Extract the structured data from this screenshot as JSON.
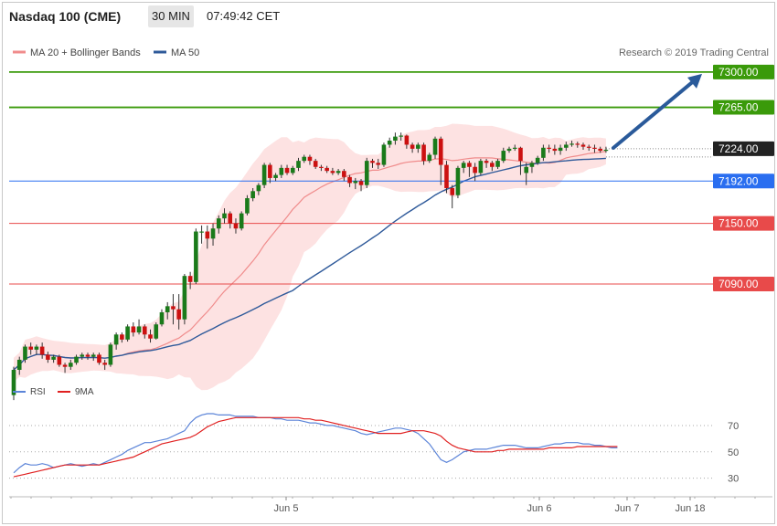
{
  "header": {
    "instrument": "Nasdaq 100 (CME)",
    "timeframe": "30 MIN",
    "time": "07:49:42 CET"
  },
  "legend": {
    "ma20": "MA 20 + Bollinger Bands",
    "ma50": "MA 50",
    "copyright": "Research © 2019 Trading Central",
    "rsi": "RSI",
    "ma9": "9MA"
  },
  "colors": {
    "target_green": "#3a9a0a",
    "pivot_blue": "#2a6ef0",
    "resistance_red": "#e84a4a",
    "current_dark": "#222222",
    "bull_candle": "#1a7a1a",
    "bear_candle": "#cc1111",
    "bollinger_fill": "#fde2e2",
    "ma20_line": "#f08c8c",
    "ma50_line": "#2f5a9a",
    "arrow": "#2a5a9a",
    "rsi_line": "#5b84d8",
    "rsi_ma": "#e02020"
  },
  "chart_data": [
    {
      "type": "candlestick",
      "title": "Nasdaq 100 (CME)",
      "ylim": [
        7005,
        7308
      ],
      "levels": [
        {
          "label": "7300.00",
          "value": 7300,
          "color": "#3a9a0a",
          "kind": "target"
        },
        {
          "label": "7265.00",
          "value": 7265,
          "color": "#3a9a0a",
          "kind": "target"
        },
        {
          "label": "7224.00",
          "value": 7224,
          "color": "#222222",
          "kind": "current"
        },
        {
          "label": "7192.00",
          "value": 7192,
          "color": "#2a6ef0",
          "kind": "pivot"
        },
        {
          "label": "7150.00",
          "value": 7150,
          "color": "#e84a4a",
          "kind": "support"
        },
        {
          "label": "7090.00",
          "value": 7090,
          "color": "#e84a4a",
          "kind": "support"
        }
      ],
      "candles": [
        [
          6980,
          7005,
          6975,
          7008
        ],
        [
          7005,
          7015,
          7000,
          7018
        ],
        [
          7015,
          7028,
          7012,
          7030
        ],
        [
          7028,
          7025,
          7020,
          7032
        ],
        [
          7025,
          7028,
          7020,
          7030
        ],
        [
          7028,
          7020,
          7016,
          7032
        ],
        [
          7020,
          7015,
          7012,
          7023
        ],
        [
          7015,
          7018,
          7012,
          7020
        ],
        [
          7018,
          7010,
          7008,
          7020
        ],
        [
          7010,
          7008,
          7002,
          7012
        ],
        [
          7008,
          7012,
          7005,
          7015
        ],
        [
          7012,
          7018,
          7010,
          7020
        ],
        [
          7018,
          7020,
          7015,
          7022
        ],
        [
          7020,
          7018,
          7015,
          7022
        ],
        [
          7018,
          7020,
          7014,
          7022
        ],
        [
          7020,
          7012,
          7010,
          7022
        ],
        [
          7012,
          7010,
          7005,
          7015
        ],
        [
          7010,
          7030,
          7008,
          7032
        ],
        [
          7030,
          7040,
          7025,
          7042
        ],
        [
          7040,
          7035,
          7032,
          7042
        ],
        [
          7035,
          7048,
          7033,
          7050
        ],
        [
          7048,
          7042,
          7038,
          7052
        ],
        [
          7042,
          7048,
          7040,
          7055
        ],
        [
          7048,
          7040,
          7036,
          7050
        ],
        [
          7040,
          7036,
          7032,
          7045
        ],
        [
          7036,
          7050,
          7035,
          7052
        ],
        [
          7050,
          7062,
          7048,
          7065
        ],
        [
          7062,
          7068,
          7055,
          7072
        ],
        [
          7068,
          7065,
          7050,
          7080
        ],
        [
          7065,
          7055,
          7045,
          7080
        ],
        [
          7055,
          7098,
          7050,
          7100
        ],
        [
          7098,
          7092,
          7085,
          7102
        ],
        [
          7092,
          7142,
          7090,
          7145
        ],
        [
          7142,
          7142,
          7130,
          7148
        ],
        [
          7142,
          7135,
          7125,
          7148
        ],
        [
          7135,
          7145,
          7128,
          7150
        ],
        [
          7145,
          7155,
          7140,
          7158
        ],
        [
          7155,
          7160,
          7150,
          7165
        ],
        [
          7160,
          7150,
          7145,
          7162
        ],
        [
          7150,
          7145,
          7140,
          7155
        ],
        [
          7145,
          7160,
          7143,
          7162
        ],
        [
          7160,
          7175,
          7158,
          7178
        ],
        [
          7175,
          7182,
          7172,
          7185
        ],
        [
          7182,
          7188,
          7178,
          7190
        ],
        [
          7188,
          7208,
          7185,
          7210
        ],
        [
          7208,
          7195,
          7190,
          7210
        ],
        [
          7195,
          7198,
          7192,
          7200
        ],
        [
          7198,
          7205,
          7195,
          7208
        ],
        [
          7205,
          7200,
          7198,
          7208
        ],
        [
          7200,
          7205,
          7198,
          7207
        ],
        [
          7205,
          7212,
          7202,
          7215
        ],
        [
          7212,
          7216,
          7210,
          7218
        ],
        [
          7216,
          7212,
          7208,
          7218
        ],
        [
          7212,
          7206,
          7204,
          7214
        ],
        [
          7206,
          7205,
          7202,
          7208
        ],
        [
          7205,
          7202,
          7200,
          7207
        ],
        [
          7202,
          7200,
          7198,
          7205
        ],
        [
          7200,
          7202,
          7198,
          7204
        ],
        [
          7202,
          7196,
          7192,
          7204
        ],
        [
          7196,
          7190,
          7186,
          7198
        ],
        [
          7190,
          7192,
          7184,
          7195
        ],
        [
          7192,
          7188,
          7182,
          7194
        ],
        [
          7188,
          7212,
          7185,
          7215
        ],
        [
          7212,
          7210,
          7205,
          7214
        ],
        [
          7210,
          7208,
          7204,
          7214
        ],
        [
          7208,
          7228,
          7206,
          7230
        ],
        [
          7228,
          7232,
          7225,
          7235
        ],
        [
          7232,
          7236,
          7228,
          7240
        ],
        [
          7236,
          7237,
          7232,
          7240
        ],
        [
          7237,
          7228,
          7224,
          7238
        ],
        [
          7228,
          7224,
          7220,
          7230
        ],
        [
          7224,
          7228,
          7220,
          7230
        ],
        [
          7228,
          7212,
          7208,
          7230
        ],
        [
          7212,
          7218,
          7210,
          7220
        ],
        [
          7218,
          7234,
          7214,
          7236
        ],
        [
          7234,
          7208,
          7188,
          7236
        ],
        [
          7208,
          7185,
          7180,
          7212
        ],
        [
          7185,
          7178,
          7165,
          7188
        ],
        [
          7178,
          7205,
          7175,
          7207
        ],
        [
          7205,
          7210,
          7200,
          7212
        ],
        [
          7210,
          7206,
          7196,
          7212
        ],
        [
          7206,
          7200,
          7192,
          7210
        ],
        [
          7200,
          7212,
          7198,
          7214
        ],
        [
          7212,
          7210,
          7205,
          7214
        ],
        [
          7210,
          7206,
          7202,
          7212
        ],
        [
          7206,
          7212,
          7204,
          7214
        ],
        [
          7212,
          7222,
          7210,
          7225
        ],
        [
          7222,
          7224,
          7220,
          7226
        ],
        [
          7224,
          7225,
          7222,
          7228
        ],
        [
          7225,
          7212,
          7198,
          7226
        ],
        [
          7200,
          7206,
          7188,
          7210
        ],
        [
          7206,
          7210,
          7200,
          7212
        ],
        [
          7210,
          7215,
          7208,
          7217
        ],
        [
          7215,
          7225,
          7212,
          7228
        ],
        [
          7225,
          7224,
          7220,
          7228
        ],
        [
          7224,
          7222,
          7218,
          7228
        ],
        [
          7222,
          7225,
          7218,
          7228
        ],
        [
          7225,
          7228,
          7222,
          7231
        ],
        [
          7228,
          7229,
          7226,
          7232
        ],
        [
          7229,
          7228,
          7225,
          7231
        ],
        [
          7228,
          7226,
          7223,
          7230
        ],
        [
          7226,
          7225,
          7222,
          7228
        ],
        [
          7225,
          7224,
          7220,
          7228
        ],
        [
          7224,
          7222,
          7220,
          7226
        ],
        [
          7222,
          7223,
          7220,
          7226
        ]
      ]
    },
    {
      "type": "line",
      "title": "RSI",
      "ylim": [
        20,
        88
      ],
      "yticks": [
        30,
        50,
        70
      ],
      "xticks": [
        "Jun 5",
        "Jun 6",
        "Jun 7",
        "Jun 18"
      ],
      "series": [
        {
          "name": "RSI",
          "color": "#5b84d8",
          "values": [
            34,
            38,
            41,
            40,
            40,
            41,
            40,
            38,
            39,
            40,
            41,
            40,
            39,
            40,
            41,
            40,
            42,
            44,
            46,
            48,
            51,
            53,
            55,
            57,
            57,
            58,
            59,
            60,
            62,
            64,
            66,
            72,
            76,
            78,
            79,
            79,
            78,
            78,
            78,
            77,
            77,
            77,
            77,
            76,
            76,
            76,
            75,
            75,
            74,
            74,
            74,
            73,
            72,
            72,
            71,
            70,
            70,
            69,
            68,
            67,
            66,
            64,
            63,
            64,
            65,
            66,
            67,
            68,
            68,
            67,
            66,
            64,
            60,
            56,
            50,
            44,
            42,
            44,
            47,
            50,
            51,
            52,
            52,
            52,
            53,
            54,
            55,
            55,
            55,
            54,
            53,
            53,
            53,
            54,
            55,
            56,
            56,
            57,
            57,
            57,
            56,
            56,
            55,
            55,
            54,
            53,
            53
          ]
        },
        {
          "name": "9MA",
          "color": "#e02020",
          "values": [
            31,
            32,
            33,
            34,
            35,
            36,
            37,
            38,
            39,
            40,
            40,
            40,
            40,
            40,
            40,
            40,
            41,
            42,
            43,
            44,
            45,
            46,
            48,
            50,
            52,
            54,
            56,
            57,
            58,
            59,
            60,
            61,
            63,
            66,
            69,
            71,
            73,
            74,
            75,
            76,
            76,
            76,
            76,
            76,
            76,
            76,
            76,
            76,
            76,
            76,
            76,
            75,
            75,
            74,
            74,
            73,
            72,
            71,
            70,
            69,
            68,
            67,
            66,
            65,
            64,
            64,
            64,
            64,
            64,
            65,
            66,
            66,
            66,
            65,
            64,
            62,
            58,
            55,
            53,
            52,
            51,
            50,
            50,
            50,
            50,
            51,
            51,
            52,
            52,
            52,
            52,
            52,
            52,
            52,
            53,
            53,
            53,
            53,
            53,
            54,
            54,
            54,
            54,
            54,
            54,
            54,
            54
          ]
        }
      ]
    }
  ]
}
